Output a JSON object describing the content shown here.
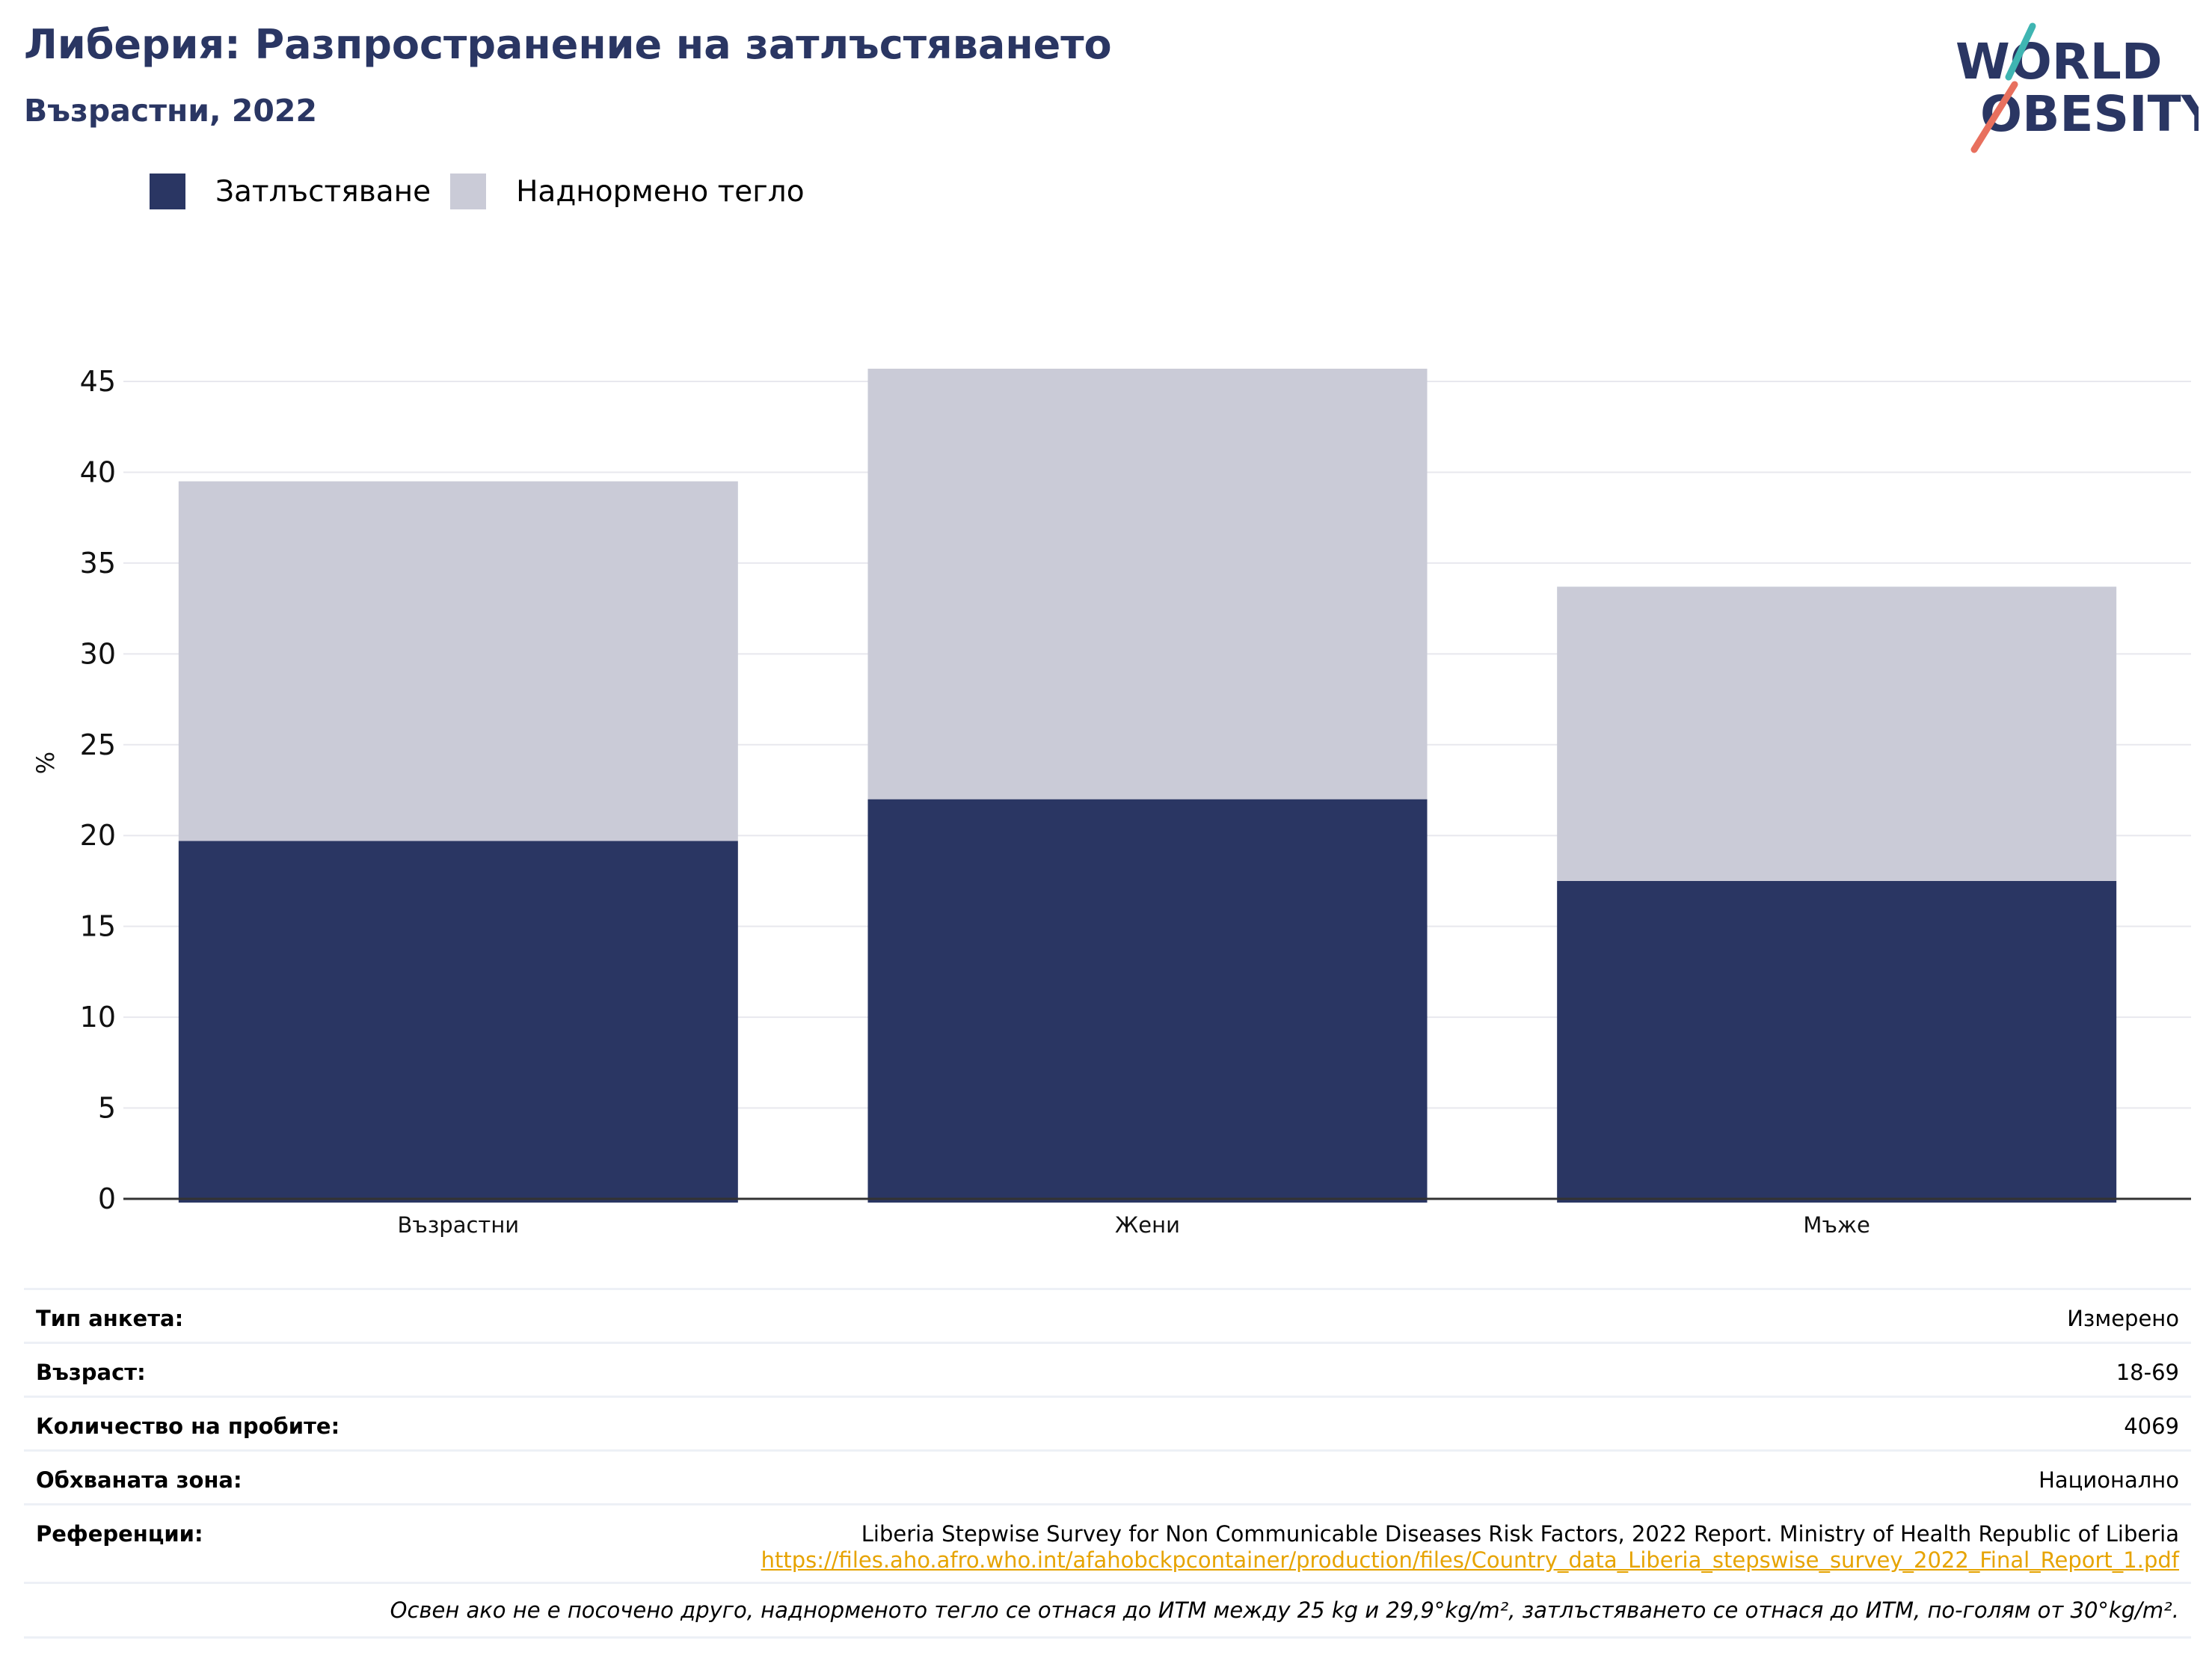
{
  "header": {
    "title": "Либерия: Разпространение на затлъстяването",
    "subtitle": "Възрастни, 2022"
  },
  "logo": {
    "line1": "WORLD",
    "line2": "OBESITY"
  },
  "colors": {
    "obesity": "#2a3663",
    "overweight": "#cacbd7",
    "title": "#2a3663",
    "link": "#e6a300"
  },
  "legend": [
    {
      "label": "Затлъстяване",
      "color": "#2a3663"
    },
    {
      "label": "Наднормено тегло",
      "color": "#cacbd7"
    }
  ],
  "chart_data": {
    "type": "bar",
    "stacked": true,
    "categories": [
      "Възрастни",
      "Жени",
      "Мъже"
    ],
    "series": [
      {
        "name": "Затлъстяване",
        "values": [
          19.7,
          22.0,
          17.5
        ]
      },
      {
        "name": "Наднормено тегло",
        "values": [
          19.8,
          23.7,
          16.2
        ]
      }
    ],
    "ylabel": "%",
    "ylim": [
      0,
      47
    ],
    "yticks": [
      0,
      5,
      10,
      15,
      20,
      25,
      30,
      35,
      40,
      45
    ],
    "grid": true,
    "legend_position": "top-left"
  },
  "info": {
    "rows": [
      {
        "key": "Тип анкета:",
        "value": "Измерено"
      },
      {
        "key": "Възраст:",
        "value": "18-69"
      },
      {
        "key": "Количество на пробите:",
        "value": "4069"
      },
      {
        "key": "Обхваната зона:",
        "value": "Национално"
      }
    ],
    "references": {
      "key": "Референции:",
      "text": "Liberia Stepwise Survey for Non Communicable Diseases Risk Factors, 2022 Report. Ministry of Health Republic of Liberia",
      "link": "https://files.aho.afro.who.int/afahobckpcontainer/production/files/Country_data_Liberia_stepswise_survey_2022_Final_Report_1.pdf"
    },
    "note": "Освен ако не е посочено друго, наднорменото тегло се отнася до ИТМ между 25 kg и 29,9°kg/m², затлъстяването се отнася до ИТМ, по-голям от 30°kg/m²."
  }
}
